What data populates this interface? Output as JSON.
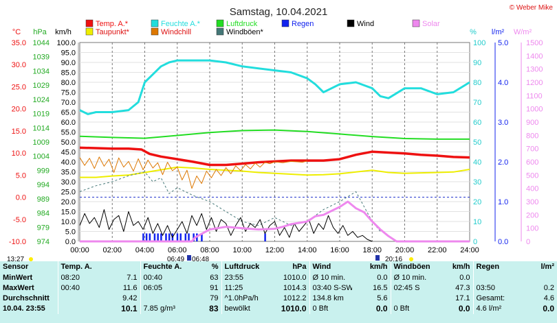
{
  "title": "Samstag, 10.04.2021",
  "copyright": "© Weber Mike",
  "legend": [
    {
      "label": "Temp. A.*",
      "color": "#ee1111"
    },
    {
      "label": "Feuchte A.*",
      "color": "#22dddd"
    },
    {
      "label": "Luftdruck",
      "color": "#22dd22"
    },
    {
      "label": "Regen",
      "color": "#1122ee"
    },
    {
      "label": "Wind",
      "color": "#000000"
    },
    {
      "label": "Solar",
      "color": "#ee88ee"
    },
    {
      "label": "Taupunkt*",
      "color": "#eeee00"
    },
    {
      "label": "Windchill",
      "color": "#dd7700"
    },
    {
      "label": "Windböen*",
      "color": "#447777"
    }
  ],
  "chart_data": {
    "type": "line",
    "x_label_unit": "hours",
    "x_ticks": [
      "00:00",
      "02:00",
      "04:00",
      "06:00",
      "08:00",
      "10:00",
      "12:00",
      "14:00",
      "16:00",
      "18:00",
      "20:00",
      "22:00",
      "24:00"
    ],
    "axes": {
      "temp": {
        "unit": "°C",
        "range": [
          -10,
          35
        ],
        "ticks": [
          "35.0",
          "30.0",
          "25.0",
          "20.0",
          "15.0",
          "10.0",
          "5.0",
          "0.0",
          "-5.0",
          "-10.0"
        ],
        "color": "#ee1111"
      },
      "pressure": {
        "unit": "hPa",
        "range": [
          974,
          1044
        ],
        "ticks": [
          "1044",
          "1039",
          "1034",
          "1029",
          "1024",
          "1019",
          "1014",
          "1009",
          "1004",
          "999",
          "994",
          "989",
          "984",
          "979",
          "974"
        ],
        "color": "#22aa22"
      },
      "wind": {
        "unit": "km/h",
        "range": [
          0,
          100
        ],
        "ticks": [
          "100.0",
          "95.0",
          "90.0",
          "85.0",
          "80.0",
          "75.0",
          "70.0",
          "65.0",
          "60.0",
          "55.0",
          "50.0",
          "45.0",
          "40.0",
          "35.0",
          "30.0",
          "25.0",
          "20.0",
          "15.0",
          "10.0",
          "5.0",
          "0.0"
        ],
        "color": "#000000"
      },
      "humidity": {
        "unit": "%",
        "range": [
          0,
          100
        ],
        "ticks": [
          "100",
          "90",
          "80",
          "70",
          "60",
          "50",
          "40",
          "30",
          "20",
          "10",
          "0"
        ],
        "color": "#22cccc"
      },
      "rain": {
        "unit": "l/m²",
        "range": [
          0,
          5
        ],
        "ticks": [
          "5.0",
          "4.0",
          "3.0",
          "2.0",
          "1.0",
          "0.0"
        ],
        "color": "#1122ee"
      },
      "solar": {
        "unit": "W/m²",
        "range": [
          0,
          1500
        ],
        "ticks": [
          "1500",
          "1400",
          "1300",
          "1200",
          "1100",
          "1000",
          "900",
          "800",
          "700",
          "600",
          "500",
          "400",
          "300",
          "200",
          "100",
          "0"
        ],
        "color": "#ee88ee"
      }
    },
    "series": [
      {
        "name": "Temp. A.*",
        "axis": "temp",
        "color": "#ee1111",
        "width": 3.5,
        "x": [
          0,
          1,
          2,
          3,
          3.8,
          4.3,
          5,
          6,
          7,
          8,
          9,
          10,
          11,
          12,
          13,
          14,
          15,
          16,
          17,
          18,
          19,
          20,
          21,
          22,
          23,
          24
        ],
        "y": [
          11.2,
          11.1,
          11.0,
          11.0,
          10.8,
          9.8,
          9.2,
          8.6,
          8.0,
          7.3,
          7.3,
          7.6,
          7.9,
          8.1,
          8.3,
          8.3,
          8.3,
          8.6,
          9.6,
          10.3,
          10.1,
          9.9,
          9.6,
          9.4,
          9.1,
          9.0
        ]
      },
      {
        "name": "Feuchte A.*",
        "axis": "humidity",
        "color": "#22dddd",
        "width": 3,
        "x": [
          0,
          0.5,
          1,
          2,
          3,
          3.6,
          4,
          4.5,
          5,
          5.5,
          6,
          7,
          8,
          9,
          10,
          11,
          12,
          13,
          14,
          14.5,
          15,
          16,
          17,
          18,
          18.5,
          19,
          20,
          21,
          22,
          23,
          24
        ],
        "y": [
          66,
          64,
          65,
          65,
          66,
          70,
          80,
          84,
          88,
          90,
          91,
          91,
          91,
          90,
          88,
          87,
          86,
          85,
          82,
          79,
          75,
          79,
          80,
          77,
          73,
          72,
          77,
          77,
          74,
          75,
          80
        ]
      },
      {
        "name": "Luftdruck",
        "axis": "pressure",
        "color": "#22dd22",
        "width": 2,
        "x": [
          0,
          2,
          4,
          6,
          8,
          10,
          12,
          14,
          16,
          18,
          20,
          22,
          24
        ],
        "y": [
          1011.0,
          1010.6,
          1010.3,
          1011.3,
          1012.3,
          1013.0,
          1013.2,
          1012.7,
          1011.8,
          1010.9,
          1010.2,
          1010.0,
          1010.0
        ]
      },
      {
        "name": "Taupunkt*",
        "axis": "temp",
        "color": "#eeee00",
        "width": 2,
        "x": [
          0,
          1,
          2,
          3,
          4,
          5,
          6,
          7,
          8,
          9,
          10,
          11,
          12,
          13,
          14,
          15,
          16,
          17,
          18,
          19,
          20,
          21,
          22,
          23,
          24
        ],
        "y": [
          4.5,
          4.5,
          4.8,
          5.0,
          5.6,
          6.2,
          6.8,
          6.6,
          6.3,
          6.1,
          5.9,
          5.6,
          5.4,
          5.2,
          5.0,
          5.1,
          5.3,
          5.7,
          6.1,
          5.6,
          5.4,
          5.5,
          5.6,
          5.7,
          6.3
        ]
      },
      {
        "name": "Windchill",
        "axis": "temp",
        "color": "#dd7700",
        "width": 1,
        "x": [
          0,
          0.3,
          0.6,
          0.9,
          1.2,
          1.5,
          1.8,
          2.1,
          2.4,
          2.7,
          3.0,
          3.3,
          3.6,
          3.9,
          4.2,
          4.5,
          4.8,
          5.1,
          5.4,
          5.7,
          6.0,
          6.3,
          6.6,
          6.9,
          7.2,
          7.5,
          7.8,
          8.1,
          8.4,
          8.7,
          9.0,
          9.3,
          9.6,
          9.9,
          10.2,
          10.5,
          10.8,
          11.1,
          11.4,
          11.7,
          12.0,
          12.5,
          13.0,
          13.4,
          13.7,
          14.0
        ],
        "y": [
          9.0,
          7.2,
          8.8,
          6.5,
          9.1,
          7.0,
          8.6,
          5.6,
          8.9,
          6.8,
          8.1,
          5.9,
          8.7,
          6.2,
          8.4,
          6.6,
          7.8,
          5.1,
          7.9,
          6.0,
          6.8,
          3.9,
          6.1,
          2.0,
          4.8,
          3.1,
          5.9,
          4.4,
          6.3,
          4.9,
          6.7,
          5.3,
          7.1,
          6.0,
          7.4,
          6.4,
          7.7,
          6.8,
          7.9,
          7.6,
          8.0,
          7.8,
          8.1,
          8.0,
          7.9,
          8.2
        ]
      },
      {
        "name": "Windböen*",
        "axis": "wind",
        "color": "#447777",
        "width": 1,
        "dash": "3,3",
        "x": [
          0,
          1,
          2,
          3,
          4,
          4.5,
          5,
          5.5,
          6,
          7,
          8,
          9,
          10,
          11,
          12,
          13,
          14,
          15,
          16,
          17,
          18,
          18.5
        ],
        "y": [
          25,
          28,
          30,
          33,
          35,
          30,
          32,
          24,
          27,
          23,
          20,
          15,
          10,
          8,
          12,
          8,
          10,
          16,
          20,
          25,
          10,
          5
        ]
      },
      {
        "name": "Wind",
        "axis": "wind",
        "color": "#000000",
        "width": 1,
        "x": [
          0,
          0.3,
          0.6,
          0.9,
          1.2,
          1.5,
          1.8,
          2.1,
          2.4,
          2.7,
          3.0,
          3.3,
          3.6,
          3.9,
          4.2,
          4.5,
          4.8,
          5.1,
          5.4,
          5.7,
          6.0,
          6.3,
          6.6,
          6.9,
          7.2,
          7.5,
          7.8,
          8.1,
          8.4,
          8.7,
          9.0,
          9.3,
          9.6,
          9.9,
          10.2,
          10.5,
          10.8,
          11.1,
          11.4,
          11.7,
          12.0,
          12.3,
          12.6,
          12.9,
          13.2,
          13.5,
          13.8,
          14.1,
          14.4,
          14.7,
          15.0,
          15.3,
          15.6,
          15.9,
          16.2,
          16.5,
          16.8,
          17.1,
          17.4,
          17.7,
          18.0
        ],
        "y": [
          8,
          14,
          9,
          12,
          7,
          16,
          6,
          11,
          13,
          5,
          15,
          8,
          10,
          6,
          12,
          4,
          9,
          3,
          8,
          2,
          6,
          10,
          4,
          13,
          8,
          14,
          6,
          12,
          5,
          11,
          9,
          3,
          8,
          12,
          5,
          9,
          7,
          11,
          4,
          8,
          10,
          3,
          7,
          2,
          9,
          5,
          8,
          11,
          4,
          9,
          6,
          13,
          7,
          4,
          8,
          3,
          5,
          2,
          3,
          1,
          0
        ]
      },
      {
        "name": "Solar",
        "axis": "solar",
        "color": "#ee88ee",
        "width": 3,
        "x": [
          0,
          6.9,
          7.1,
          8,
          9,
          10,
          11,
          12,
          12.5,
          13,
          14,
          14.5,
          15,
          15.5,
          16,
          16.5,
          17,
          17.5,
          18,
          18.5,
          19,
          19.5,
          24
        ],
        "y": [
          0,
          0,
          30,
          90,
          110,
          100,
          90,
          95,
          110,
          130,
          150,
          190,
          200,
          230,
          260,
          300,
          250,
          220,
          150,
          90,
          40,
          0,
          0
        ]
      }
    ],
    "rain_bars": {
      "x": [
        3.9,
        4.1,
        4.3,
        4.6,
        4.8,
        5.0,
        5.3,
        5.5,
        5.7,
        6.0,
        6.2,
        6.5,
        6.7,
        7.0,
        7.2,
        7.5,
        11.4
      ],
      "y": [
        0.2,
        0.2,
        0.2,
        0.2,
        0.2,
        0.2,
        0.2,
        0.2,
        0.2,
        0.2,
        0.2,
        0.2,
        0.2,
        0.2,
        0.2,
        0.2,
        0.2
      ]
    },
    "markers": {
      "sunrise_left": "13:27",
      "sunrise": "06:49",
      "sunset": "06:48",
      "moon": "20:16"
    },
    "grid": true
  },
  "stats": {
    "headers": [
      "Sensor",
      "Temp. A.",
      "",
      "Feuchte A.",
      "%",
      "Luftdruck",
      "hPa",
      "Wind",
      "km/h",
      "Windböen",
      "km/h",
      "Regen",
      "l/m²"
    ],
    "rows": [
      {
        "label": "MinWert",
        "cells": [
          "08:20",
          "7.1",
          "00:40",
          "63",
          "23:55",
          "1010.0",
          "Ø 10 min.",
          "0.0",
          "Ø 10 min.",
          "0.0",
          "",
          ""
        ]
      },
      {
        "label": "MaxWert",
        "cells": [
          "00:40",
          "11.6",
          "06:05",
          "91",
          "11:25",
          "1014.3",
          "03:40 S-SW",
          "16.5",
          "02:45 S",
          "47.3",
          "03:50",
          "0.2"
        ]
      },
      {
        "label": "Durchschnitt",
        "cells": [
          "",
          "9.42",
          "",
          "79",
          "^1.0hPa/h",
          "1012.2",
          "134.8 km",
          "5.6",
          "",
          "17.1",
          "Gesamt:",
          "4.6"
        ]
      },
      {
        "label": "10.04. 23:55",
        "cells": [
          "",
          "10.1",
          "7.85 g/m³",
          "83",
          "bewölkt",
          "1010.0",
          "0 Bft",
          "0.0",
          "0 Bft",
          "0.0",
          "4.6 l/m²",
          "0.0"
        ]
      }
    ]
  }
}
